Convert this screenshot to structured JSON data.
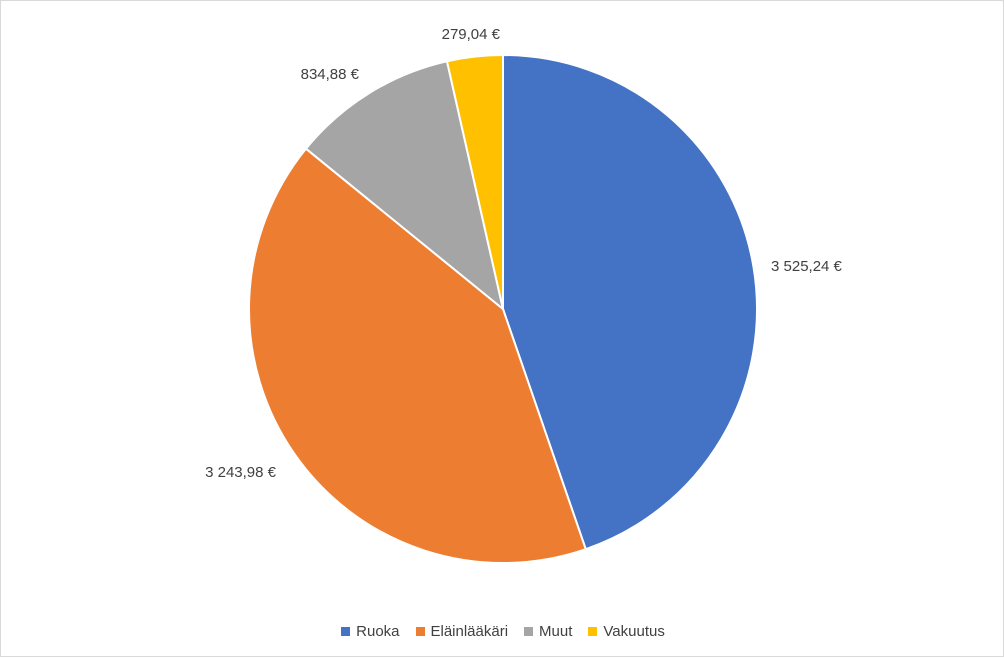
{
  "chart_data": {
    "type": "pie",
    "title": "",
    "categories": [
      "Ruoka",
      "Eläinlääkäri",
      "Muut",
      "Vakuutus"
    ],
    "values": [
      3525.24,
      3243.98,
      834.88,
      279.04
    ],
    "labels": [
      "3 525,24 €",
      "3 243,98 €",
      "834,88 €",
      "279,04 €"
    ],
    "colors": [
      "#4472C4",
      "#ED7D31",
      "#A5A5A5",
      "#FFC000"
    ],
    "legend": "bottom"
  }
}
